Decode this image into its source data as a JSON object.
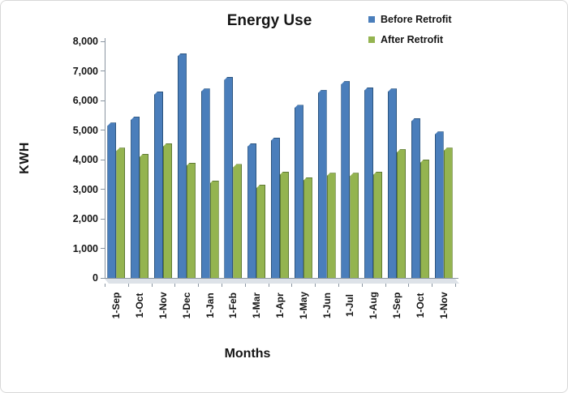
{
  "title": "Energy Use",
  "chart_data": {
    "type": "bar",
    "title": "Energy Use",
    "xlabel": "Months",
    "ylabel": "KWH",
    "categories": [
      "1-Sep",
      "1-Oct",
      "1-Nov",
      "1-Dec",
      "1-Jan",
      "1-Feb",
      "1-Mar",
      "1-Apr",
      "1-May",
      "1-Jun",
      "1-Jul",
      "1-Aug",
      "1-Sep",
      "1-Oct",
      "1-Nov"
    ],
    "series": [
      {
        "name": "Before Retrofit",
        "color": "#4a7ebb",
        "edge_color": "#2b547f",
        "values": [
          5250,
          5450,
          6300,
          7600,
          6400,
          6800,
          4550,
          4750,
          5850,
          6350,
          6650,
          6450,
          6400,
          5400,
          4950
        ]
      },
      {
        "name": "After Retrofit",
        "color": "#94b450",
        "edge_color": "#5f7a33",
        "values": [
          4400,
          4200,
          4550,
          3900,
          3300,
          3850,
          3150,
          3600,
          3400,
          3550,
          3550,
          3600,
          4350,
          4000,
          4400
        ]
      }
    ],
    "ylim": [
      0,
      8000
    ],
    "ytick_step": 1000,
    "ytick_labels": [
      "0",
      "1,000",
      "2,000",
      "3,000",
      "4,000",
      "5,000",
      "6,000",
      "7,000",
      "8,000"
    ],
    "grid": false,
    "legend_position": "top-right"
  }
}
